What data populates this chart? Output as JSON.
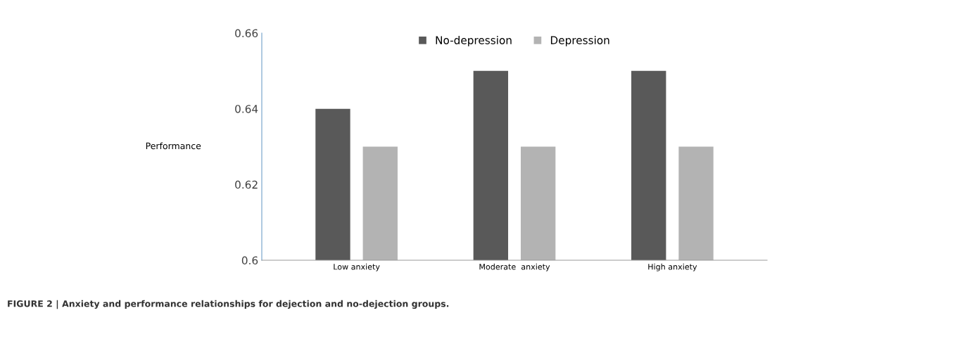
{
  "chart_data": {
    "type": "bar",
    "ylabel": "Performance",
    "categories": [
      "Low anxiety",
      "Moderate  anxiety",
      "High anxiety"
    ],
    "series": [
      {
        "name": "No-depression",
        "color": "#595959",
        "values": [
          0.64,
          0.65,
          0.65
        ]
      },
      {
        "name": "Depression",
        "color": "#b3b3b3",
        "values": [
          0.63,
          0.63,
          0.63
        ]
      }
    ],
    "ylim": [
      0.6,
      0.66
    ],
    "yticks": [
      0.6,
      0.62,
      0.64,
      0.66
    ],
    "grid": false,
    "legend": "top",
    "annotations": [
      "FIGURE 2 | Anxiety and performance relationships for dejection and no-dejection groups."
    ]
  }
}
